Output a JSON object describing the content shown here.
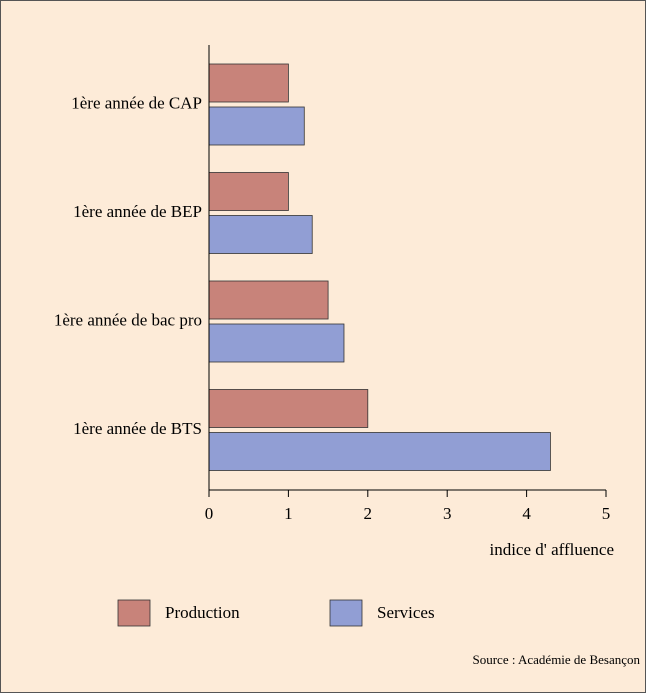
{
  "chart_data": {
    "type": "bar",
    "orientation": "horizontal",
    "categories": [
      "1ère année de CAP",
      "1ère année de BEP",
      "1ère année de bac pro",
      "1ère année de BTS"
    ],
    "series": [
      {
        "name": "Production",
        "color": "#c8837a",
        "values": [
          1.0,
          1.0,
          1.5,
          2.0
        ]
      },
      {
        "name": "Services",
        "color": "#919ed4",
        "values": [
          1.2,
          1.3,
          1.7,
          4.3
        ]
      }
    ],
    "xlim": [
      0,
      5
    ],
    "xticks": [
      0,
      1,
      2,
      3,
      4,
      5
    ],
    "xlabel": "indice d' affluence",
    "source": "Source : Académie de Besançon",
    "legend": "bottom"
  }
}
